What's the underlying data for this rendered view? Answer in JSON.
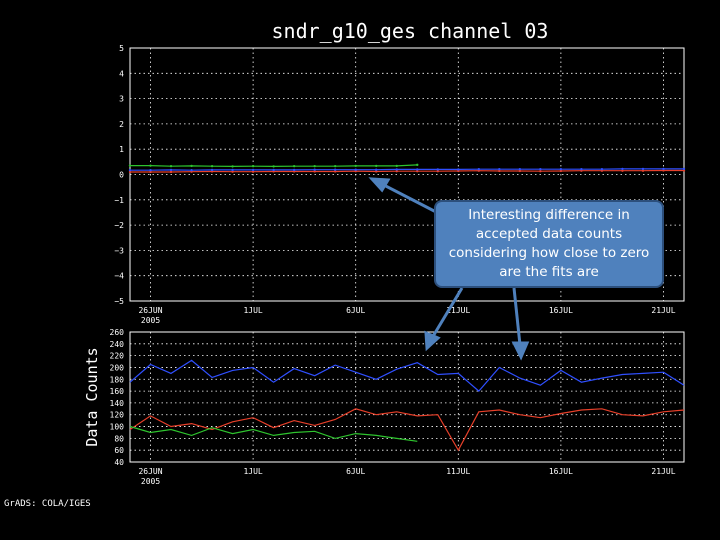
{
  "title": "sndr_g10_ges channel 03",
  "credit": "GrADS: COLA/IGES",
  "callout": {
    "text": "Interesting difference in accepted data counts considering how close to zero are the fits are"
  },
  "colors": {
    "background": "#000000",
    "blue": "#2f4fff",
    "red": "#e8402a",
    "green": "#2ec42e",
    "callout_fill": "#4f81bd",
    "arrow": "#4f81bd"
  },
  "x_ticks": [
    {
      "label": "26JUN",
      "label2": "2005",
      "day": 0
    },
    {
      "label": "1JUL",
      "label2": "",
      "day": 5
    },
    {
      "label": "6JUL",
      "label2": "",
      "day": 10
    },
    {
      "label": "11JUL",
      "label2": "",
      "day": 15
    },
    {
      "label": "16JUL",
      "label2": "",
      "day": 20
    },
    {
      "label": "21JUL",
      "label2": "",
      "day": 25
    }
  ],
  "chart_data": [
    {
      "type": "line",
      "title": "sndr_g10_ges channel 03",
      "ylabel": "",
      "ylim": [
        -5,
        5
      ],
      "y_ticks": [
        "5",
        "4",
        "3",
        "2",
        "1",
        "0",
        "−1",
        "−2",
        "−3",
        "−4",
        "−5"
      ],
      "grid": true,
      "x": [
        "25JUN2005",
        "26JUN2005",
        "27JUN2005",
        "28JUN2005",
        "29JUN2005",
        "30JUN2005",
        "1JUL2005",
        "2JUL2005",
        "3JUL2005",
        "4JUL2005",
        "5JUL2005",
        "6JUL2005",
        "7JUL2005",
        "8JUL2005",
        "9JUL2005",
        "10JUL2005",
        "11JUL2005",
        "12JUL2005",
        "13JUL2005",
        "14JUL2005",
        "15JUL2005",
        "16JUL2005",
        "17JUL2005",
        "18JUL2005",
        "19JUL2005",
        "20JUL2005",
        "21JUL2005",
        "22JUL2005"
      ],
      "series": [
        {
          "color": "#2ec42e",
          "values": [
            0.35,
            0.35,
            0.33,
            0.34,
            0.33,
            0.32,
            0.33,
            0.32,
            0.33,
            0.33,
            0.33,
            0.34,
            0.34,
            0.34,
            0.38,
            null,
            null,
            null,
            null,
            null,
            null,
            null,
            null,
            null,
            null,
            null,
            null,
            null
          ]
        },
        {
          "color": "#e8402a",
          "values": [
            0.1,
            0.1,
            0.1,
            0.11,
            0.12,
            0.11,
            0.11,
            0.12,
            0.12,
            0.12,
            0.12,
            0.13,
            0.12,
            0.13,
            0.13,
            0.13,
            0.14,
            0.15,
            0.14,
            0.14,
            0.13,
            0.14,
            0.15,
            0.15,
            0.15,
            0.15,
            0.16,
            0.16
          ]
        },
        {
          "color": "#2f4fff",
          "values": [
            0.17,
            0.17,
            0.18,
            0.17,
            0.18,
            0.18,
            0.18,
            0.18,
            0.18,
            0.19,
            0.19,
            0.19,
            0.19,
            0.2,
            0.2,
            0.2,
            0.2,
            0.21,
            0.21,
            0.21,
            0.21,
            0.21,
            0.21,
            0.21,
            0.22,
            0.22,
            0.22,
            0.22
          ]
        }
      ]
    },
    {
      "type": "line",
      "title": "",
      "ylabel": "Data Counts",
      "ylim": [
        40,
        260
      ],
      "y_ticks": [
        "260",
        "240",
        "220",
        "200",
        "180",
        "160",
        "140",
        "120",
        "100",
        "80",
        "60",
        "40"
      ],
      "grid": true,
      "x": [
        "25JUN2005",
        "26JUN2005",
        "27JUN2005",
        "28JUN2005",
        "29JUN2005",
        "30JUN2005",
        "1JUL2005",
        "2JUL2005",
        "3JUL2005",
        "4JUL2005",
        "5JUL2005",
        "6JUL2005",
        "7JUL2005",
        "8JUL2005",
        "9JUL2005",
        "10JUL2005",
        "11JUL2005",
        "12JUL2005",
        "13JUL2005",
        "14JUL2005",
        "15JUL2005",
        "16JUL2005",
        "17JUL2005",
        "18JUL2005",
        "19JUL2005",
        "20JUL2005",
        "21JUL2005",
        "22JUL2005"
      ],
      "series": [
        {
          "color": "#2f4fff",
          "values": [
            175,
            205,
            190,
            212,
            183,
            195,
            200,
            175,
            198,
            186,
            204,
            192,
            180,
            197,
            208,
            188,
            190,
            160,
            200,
            182,
            170,
            195,
            175,
            182,
            188,
            190,
            192,
            170
          ]
        },
        {
          "color": "#e8402a",
          "values": [
            95,
            118,
            100,
            105,
            95,
            108,
            115,
            98,
            110,
            102,
            112,
            130,
            120,
            125,
            118,
            120,
            60,
            125,
            128,
            120,
            115,
            122,
            128,
            130,
            120,
            118,
            125,
            128
          ]
        },
        {
          "color": "#2ec42e",
          "values": [
            100,
            90,
            95,
            85,
            98,
            88,
            95,
            85,
            90,
            92,
            80,
            88,
            85,
            80,
            75,
            null,
            null,
            null,
            null,
            null,
            null,
            null,
            null,
            null,
            null,
            null,
            null,
            null
          ]
        }
      ]
    }
  ]
}
